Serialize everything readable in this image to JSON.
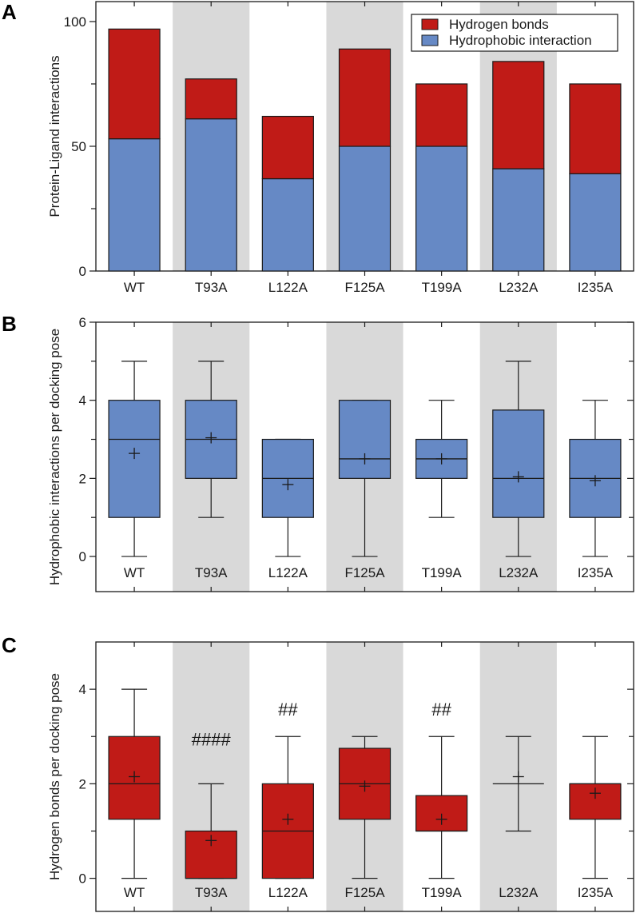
{
  "colors": {
    "hydrogen": "#C01B17",
    "hydrophobic": "#6689C5",
    "band": "#D9D9D9",
    "line": "#1a1a1a"
  },
  "chart_data": [
    {
      "panel": "A",
      "type": "bar",
      "stacked": true,
      "ylabel": "Protein-Ligand interactions",
      "categories": [
        "WT",
        "T93A",
        "L122A",
        "F125A",
        "T199A",
        "L232A",
        "I235A"
      ],
      "shaded_categories": [
        "T93A",
        "F125A",
        "L232A"
      ],
      "ylim": [
        0,
        108
      ],
      "yticks": [
        0,
        50,
        100
      ],
      "yminor_ticks": [
        25,
        75
      ],
      "legend_position": "top-right",
      "series": [
        {
          "name": "Hydrophobic interaction",
          "color_key": "hydrophobic",
          "values": [
            53,
            61,
            37,
            50,
            50,
            41,
            39
          ]
        },
        {
          "name": "Hydrogen bonds",
          "color_key": "hydrogen",
          "values": [
            44,
            16,
            25,
            39,
            25,
            43,
            36
          ]
        }
      ],
      "totals": [
        97,
        77,
        62,
        89,
        75,
        84,
        75
      ],
      "legend": [
        "Hydrogen bonds",
        "Hydrophobic interaction"
      ]
    },
    {
      "panel": "B",
      "type": "box",
      "ylabel": "Hydrophobic interactions per docking pose",
      "categories": [
        "WT",
        "T93A",
        "L122A",
        "F125A",
        "T199A",
        "L232A",
        "I235A"
      ],
      "shaded_categories": [
        "T93A",
        "F125A",
        "L232A"
      ],
      "ylim": [
        -0.9,
        6
      ],
      "yticks": [
        0,
        2,
        4,
        6
      ],
      "yminor_ticks": [
        1,
        3,
        5
      ],
      "fill_key": "hydrophobic",
      "boxes": [
        {
          "min": 0,
          "q1": 1,
          "median": 3,
          "q3": 4,
          "max": 5,
          "mean": 2.64
        },
        {
          "min": 1,
          "q1": 2,
          "median": 3,
          "q3": 4,
          "max": 5,
          "mean": 3.04
        },
        {
          "min": 0,
          "q1": 1,
          "median": 2,
          "q3": 3,
          "max": 3,
          "mean": 1.84
        },
        {
          "min": 0,
          "q1": 2,
          "median": 2.5,
          "q3": 4,
          "max": 4,
          "mean": 2.5
        },
        {
          "min": 1,
          "q1": 2,
          "median": 2.5,
          "q3": 3,
          "max": 4,
          "mean": 2.5
        },
        {
          "min": 0,
          "q1": 1,
          "median": 2,
          "q3": 3.75,
          "max": 5,
          "mean": 2.04
        },
        {
          "min": 0,
          "q1": 1,
          "median": 2,
          "q3": 3,
          "max": 4,
          "mean": 1.94
        }
      ],
      "annotations": [
        "",
        "",
        "",
        "",
        "",
        "",
        ""
      ]
    },
    {
      "panel": "C",
      "type": "box",
      "ylabel": "Hydrogen bonds per docking pose",
      "categories": [
        "WT",
        "T93A",
        "L122A",
        "F125A",
        "T199A",
        "L232A",
        "I235A"
      ],
      "shaded_categories": [
        "T93A",
        "F125A",
        "L232A"
      ],
      "ylim": [
        -0.7,
        5
      ],
      "yticks": [
        0,
        2,
        4
      ],
      "yminor_ticks": [
        1,
        3
      ],
      "fill_key": "hydrogen",
      "boxes": [
        {
          "min": 0,
          "q1": 1.25,
          "median": 2,
          "q3": 3,
          "max": 4,
          "mean": 2.15
        },
        {
          "min": 0,
          "q1": 0,
          "median": 0,
          "q3": 1,
          "max": 2,
          "mean": 0.8
        },
        {
          "min": 0,
          "q1": 0,
          "median": 1,
          "q3": 2,
          "max": 3,
          "mean": 1.25
        },
        {
          "min": 0,
          "q1": 1.25,
          "median": 2,
          "q3": 2.75,
          "max": 3,
          "mean": 1.95
        },
        {
          "min": 0,
          "q1": 1,
          "median": 1,
          "q3": 1.75,
          "max": 3,
          "mean": 1.25
        },
        {
          "min": 1,
          "q1": 2,
          "median": 2,
          "q3": 2,
          "max": 3,
          "mean": 2.15
        },
        {
          "min": 0,
          "q1": 1.25,
          "median": 2,
          "q3": 2,
          "max": 3,
          "mean": 1.8
        }
      ],
      "annotations": [
        "",
        "####",
        "##",
        "",
        "##",
        "",
        ""
      ]
    }
  ]
}
